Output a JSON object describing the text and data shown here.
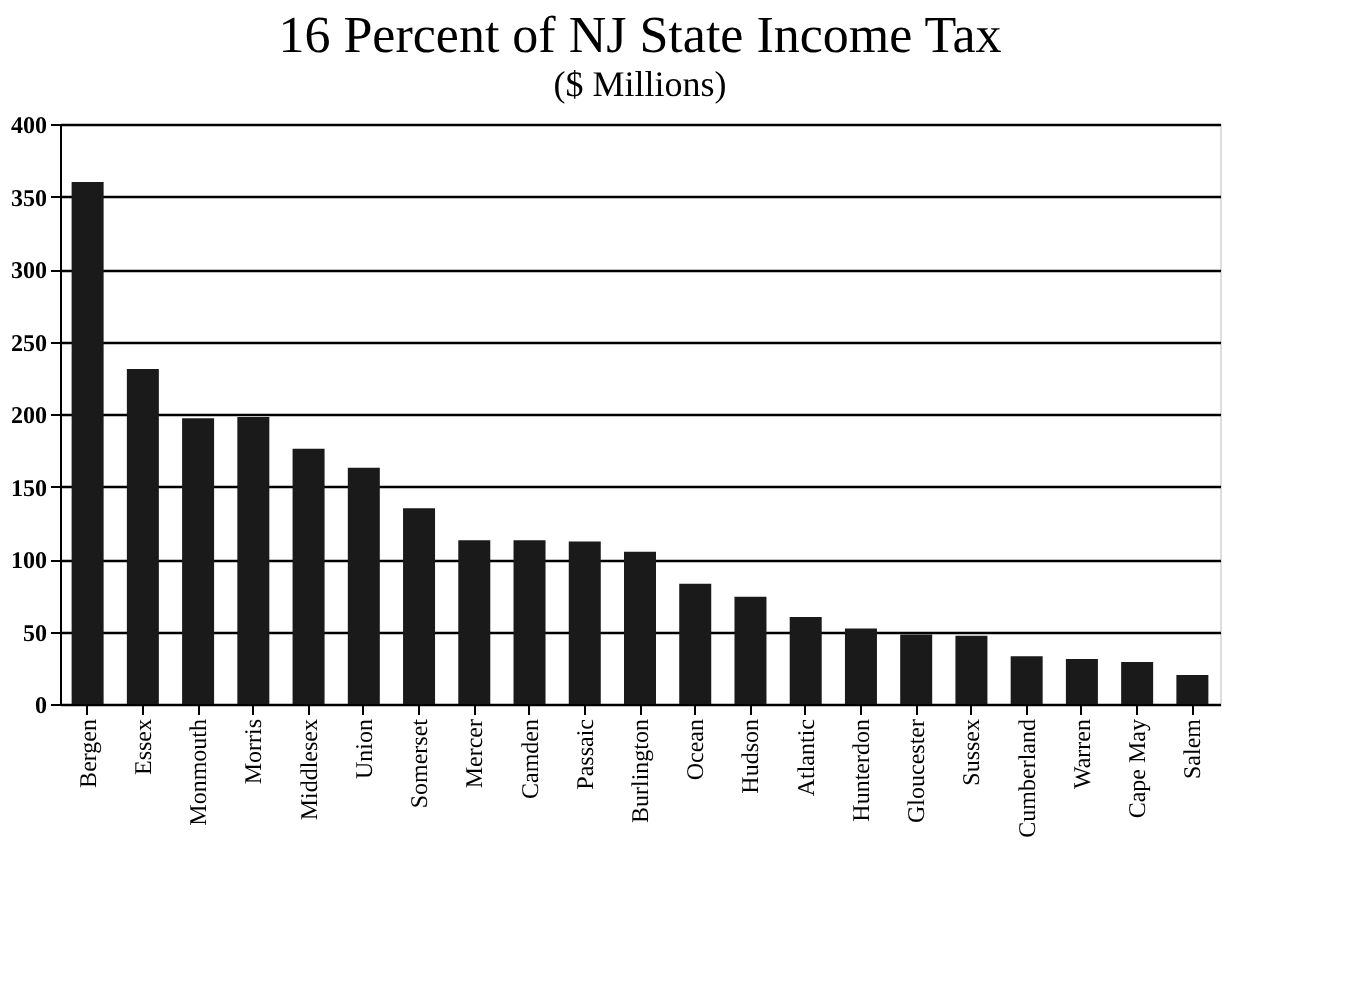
{
  "chart_data": {
    "type": "bar",
    "title": "16 Percent of NJ State Income Tax",
    "subtitle": "($ Millions)",
    "categories": [
      "Bergen",
      "Essex",
      "Monmouth",
      "Morris",
      "Middlesex",
      "Union",
      "Somerset",
      "Mercer",
      "Camden",
      "Passaic",
      "Burlington",
      "Ocean",
      "Hudson",
      "Atlantic",
      "Hunterdon",
      "Gloucester",
      "Sussex",
      "Cumberland",
      "Warren",
      "Cape May",
      "Salem"
    ],
    "values": [
      360,
      231,
      197,
      198,
      176,
      163,
      135,
      113,
      113,
      112,
      105,
      83,
      74,
      60,
      52,
      48,
      47,
      33,
      31,
      29,
      20
    ],
    "color": "#1a1a1a",
    "ylim": [
      0,
      400
    ],
    "yticks": [
      0,
      50,
      100,
      150,
      200,
      250,
      300,
      350,
      400
    ],
    "grid": "y"
  }
}
